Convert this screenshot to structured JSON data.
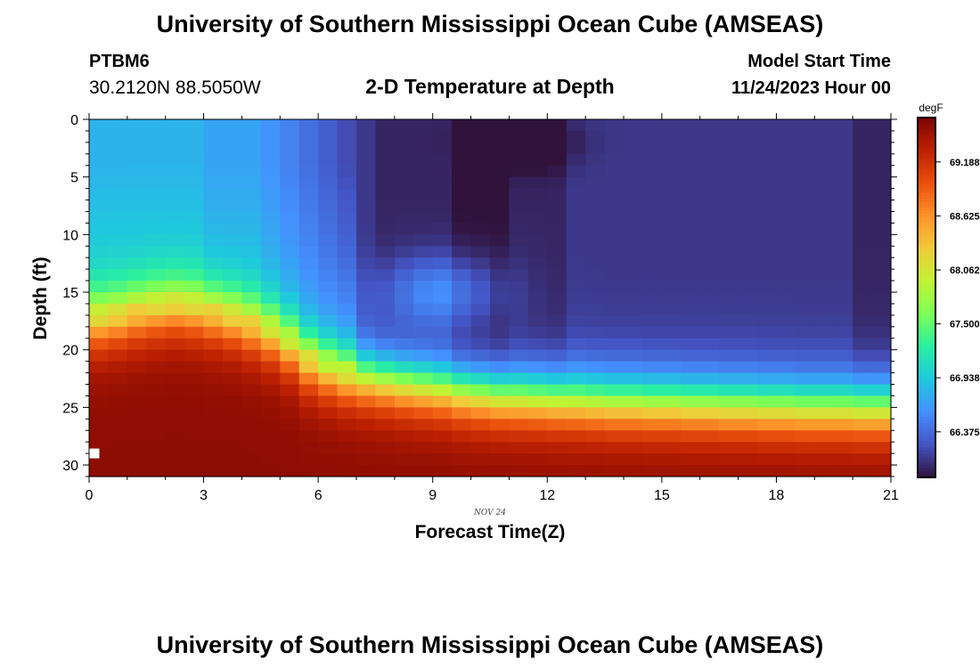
{
  "page": {
    "title": "University of Southern Mississippi Ocean Cube (AMSEAS)",
    "footer_title": "University of Southern Mississippi Ocean Cube (AMSEAS)"
  },
  "station": {
    "id": "PTBM6",
    "coords": "30.2120N  88.5050W"
  },
  "model": {
    "start_label": "Model Start Time",
    "start_value": "11/24/2023 Hour 00"
  },
  "chart_data": {
    "type": "heatmap",
    "title": "2-D Temperature at Depth",
    "xlabel": "Forecast Time(Z)",
    "ylabel": "Depth (ft)",
    "date_label": "NOV 24",
    "colorbar_unit": "degF",
    "x_ticks": [
      0,
      3,
      6,
      9,
      12,
      15,
      18,
      21
    ],
    "x_tick_labels": [
      "0",
      "3",
      "6",
      "9",
      "12",
      "15",
      "18",
      "21"
    ],
    "y_ticks": [
      0,
      5,
      10,
      15,
      20,
      25,
      30
    ],
    "y_tick_labels": [
      "0",
      "5",
      "10",
      "15",
      "20",
      "25",
      "30"
    ],
    "xlim": [
      0,
      21
    ],
    "ylim": [
      31,
      0
    ],
    "vmin": 65.9,
    "vmax": 69.65,
    "colorbar_ticks": [
      66.375,
      66.938,
      67.5,
      68.062,
      68.625,
      69.188
    ],
    "colorbar_tick_labels": [
      "66.375",
      "66.938",
      "67.500",
      "68.062",
      "68.625",
      "69.188"
    ],
    "colormap": [
      "#30123b",
      "#4454c4",
      "#4490fe",
      "#1fc8de",
      "#29efa2",
      "#7dff56",
      "#c1f334",
      "#f1ca3a",
      "#fe922a",
      "#ea4f0d",
      "#be2102",
      "#7a0403"
    ],
    "time_cols": 42,
    "depth_rows": 31,
    "thermocline_depth_ft": [
      17.5,
      17.2,
      16.8,
      16.5,
      16.3,
      16.5,
      16.8,
      17.2,
      17.8,
      18.5,
      19.5,
      20.8,
      21.5,
      22,
      22.3,
      22.5,
      22.8,
      23,
      23.2,
      23.5,
      23.7,
      23.9,
      24,
      24.1,
      24.2,
      24.3,
      24.4,
      24.5,
      24.5,
      24.6,
      24.6,
      24.7,
      24.7,
      24.8,
      24.8,
      24.9,
      24.9,
      25,
      25,
      25,
      25,
      25
    ],
    "surface_mixed_temp_degF": [
      66.8,
      66.8,
      66.8,
      66.8,
      66.8,
      66.8,
      66.7,
      66.7,
      66.7,
      66.6,
      66.5,
      66.4,
      66.3,
      66.2,
      66.1,
      66.0,
      66.0,
      66.0,
      66.0,
      65.9,
      65.9,
      65.9,
      66.0,
      66.0,
      66.0,
      66.1,
      66.1,
      66.1,
      66.1,
      66.1,
      66.1,
      66.1,
      66.1,
      66.1,
      66.1,
      66.1,
      66.1,
      66.1,
      66.1,
      66.1,
      66.0,
      66.0
    ],
    "bottom_temp_degF": 69.55,
    "marker_depth_ft": 29.0
  }
}
